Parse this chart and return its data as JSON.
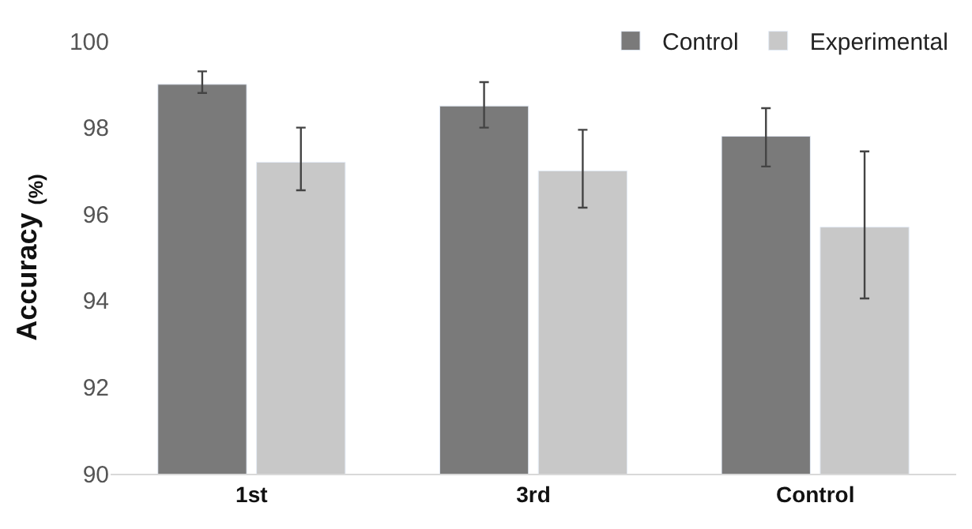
{
  "chart_data": {
    "type": "bar",
    "ylabel": "Accuracy $_{(%)}$",
    "categories": [
      "1st",
      "3rd",
      "Control"
    ],
    "series": [
      {
        "name": "Control",
        "color": "#7a7a7a",
        "values": [
          99.0,
          98.5,
          97.8
        ],
        "errors": [
          [
            98.8,
            99.3
          ],
          [
            98.0,
            99.05
          ],
          [
            97.1,
            98.45
          ]
        ]
      },
      {
        "name": "Experimental",
        "color": "#c8c8c8",
        "values": [
          97.2,
          97.0,
          95.7
        ],
        "errors": [
          [
            96.55,
            98.0
          ],
          [
            96.15,
            97.95
          ],
          [
            94.05,
            97.45
          ]
        ]
      }
    ],
    "ylim": [
      90,
      100
    ],
    "yticks": [
      90,
      92,
      94,
      96,
      98,
      100
    ],
    "legend": "top right"
  }
}
